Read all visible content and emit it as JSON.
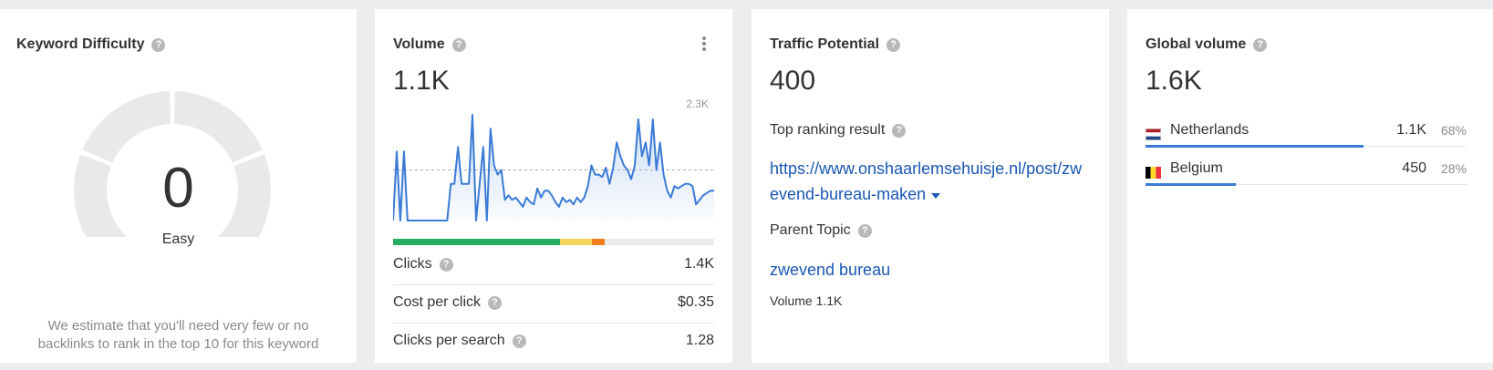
{
  "keyword_difficulty": {
    "title": "Keyword Difficulty",
    "value": "0",
    "label": "Easy",
    "description": "We estimate that you'll need very few or no backlinks to rank in the top 10 for this keyword",
    "gauge_color": "#e8e9eb"
  },
  "volume": {
    "title": "Volume",
    "value": "1.1K",
    "chart_max_label": "2.3K",
    "line_color": "#3a7bd5",
    "serp_bar": {
      "segments": [
        {
          "fraction": 0.52,
          "color": "#27ae60"
        },
        {
          "fraction": 0.1,
          "color": "#f5d55a"
        },
        {
          "fraction": 0.04,
          "color": "#f07d1a"
        }
      ]
    },
    "metrics": [
      {
        "label": "Clicks",
        "value": "1.4K"
      },
      {
        "label": "Cost per click",
        "value": "$0.35"
      },
      {
        "label": "Clicks per search",
        "value": "1.28"
      }
    ]
  },
  "traffic_potential": {
    "title": "Traffic Potential",
    "value": "400",
    "top_ranking_label": "Top ranking result",
    "top_ranking_url": "https://www.onshaarlemsehuisje.nl/post/zwevend-bureau-maken",
    "parent_topic_label": "Parent Topic",
    "parent_topic": "zwevend bureau",
    "parent_topic_volume": "Volume 1.1K"
  },
  "global_volume": {
    "title": "Global volume",
    "value": "1.6K",
    "countries": [
      {
        "name": "Netherlands",
        "volume": "1.1K",
        "percent": "68%",
        "share": 0.68
      },
      {
        "name": "Belgium",
        "volume": "450",
        "percent": "28%",
        "share": 0.28
      }
    ]
  },
  "chart_data": {
    "type": "area",
    "title": "",
    "xlabel": "",
    "ylabel": "",
    "ylim": [
      0,
      2300
    ],
    "y_max_label": "2.3K",
    "reference_line": 1100,
    "x": [
      1,
      2,
      3,
      4,
      5,
      6,
      7,
      8,
      9,
      10,
      11,
      12,
      13,
      14,
      15,
      16,
      17,
      18,
      19,
      20,
      21,
      22,
      23,
      24,
      25,
      26,
      27,
      28,
      29,
      30,
      31,
      32,
      33,
      34,
      35,
      36,
      37,
      38,
      39,
      40,
      41,
      42,
      43,
      44,
      45,
      46,
      47,
      48,
      49,
      50,
      51,
      52,
      53,
      54,
      55,
      56,
      57,
      58,
      59,
      60,
      61,
      62,
      63,
      64,
      65,
      66,
      67,
      68,
      69,
      70,
      71,
      72,
      73,
      74,
      75,
      76,
      77,
      78,
      79,
      80,
      81,
      82,
      83,
      84,
      85,
      86,
      87,
      88,
      89,
      90
    ],
    "series": [
      {
        "values": [
          0,
          1500,
          0,
          1500,
          0,
          0,
          0,
          0,
          0,
          0,
          0,
          0,
          0,
          0,
          0,
          0,
          800,
          800,
          1600,
          800,
          800,
          800,
          2300,
          0,
          800,
          1600,
          0,
          2000,
          1200,
          1000,
          1100,
          450,
          550,
          450,
          500,
          400,
          300,
          500,
          400,
          350,
          700,
          500,
          650,
          650,
          550,
          400,
          300,
          500,
          400,
          450,
          350,
          500,
          400,
          500,
          750,
          1200,
          1000,
          1000,
          950,
          1150,
          800,
          1150,
          1700,
          1400,
          1200,
          1100,
          900,
          1200,
          2200,
          1400,
          1700,
          1200,
          2200,
          1100,
          1700,
          1000,
          650,
          500,
          750,
          700,
          750,
          800,
          800,
          750,
          350,
          450,
          550,
          600,
          650,
          650
        ]
      }
    ]
  }
}
